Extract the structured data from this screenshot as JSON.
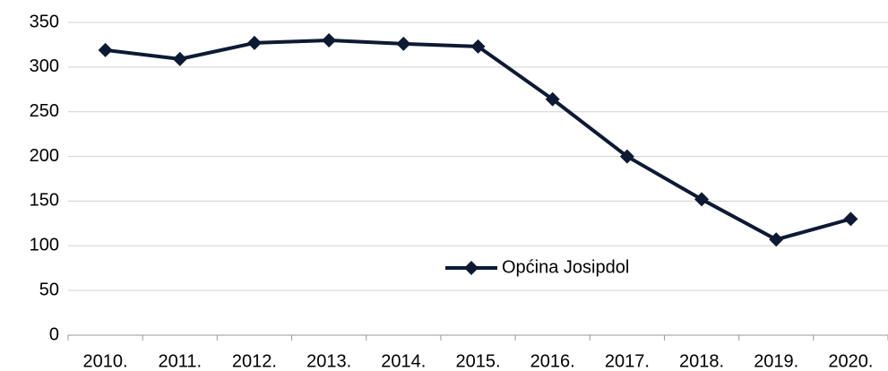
{
  "chart_data": {
    "type": "line",
    "categories": [
      "2010.",
      "2011.",
      "2012.",
      "2013.",
      "2014.",
      "2015.",
      "2016.",
      "2017.",
      "2018.",
      "2019.",
      "2020."
    ],
    "series": [
      {
        "name": "Općina Josipdol",
        "color": "#0d1a33",
        "values": [
          319,
          309,
          327,
          330,
          326,
          323,
          264,
          200,
          152,
          107,
          130
        ]
      }
    ],
    "ylim": [
      0,
      350
    ],
    "yticks": [
      0,
      50,
      100,
      150,
      200,
      250,
      300,
      350
    ],
    "grid": true,
    "legend": "inside"
  }
}
